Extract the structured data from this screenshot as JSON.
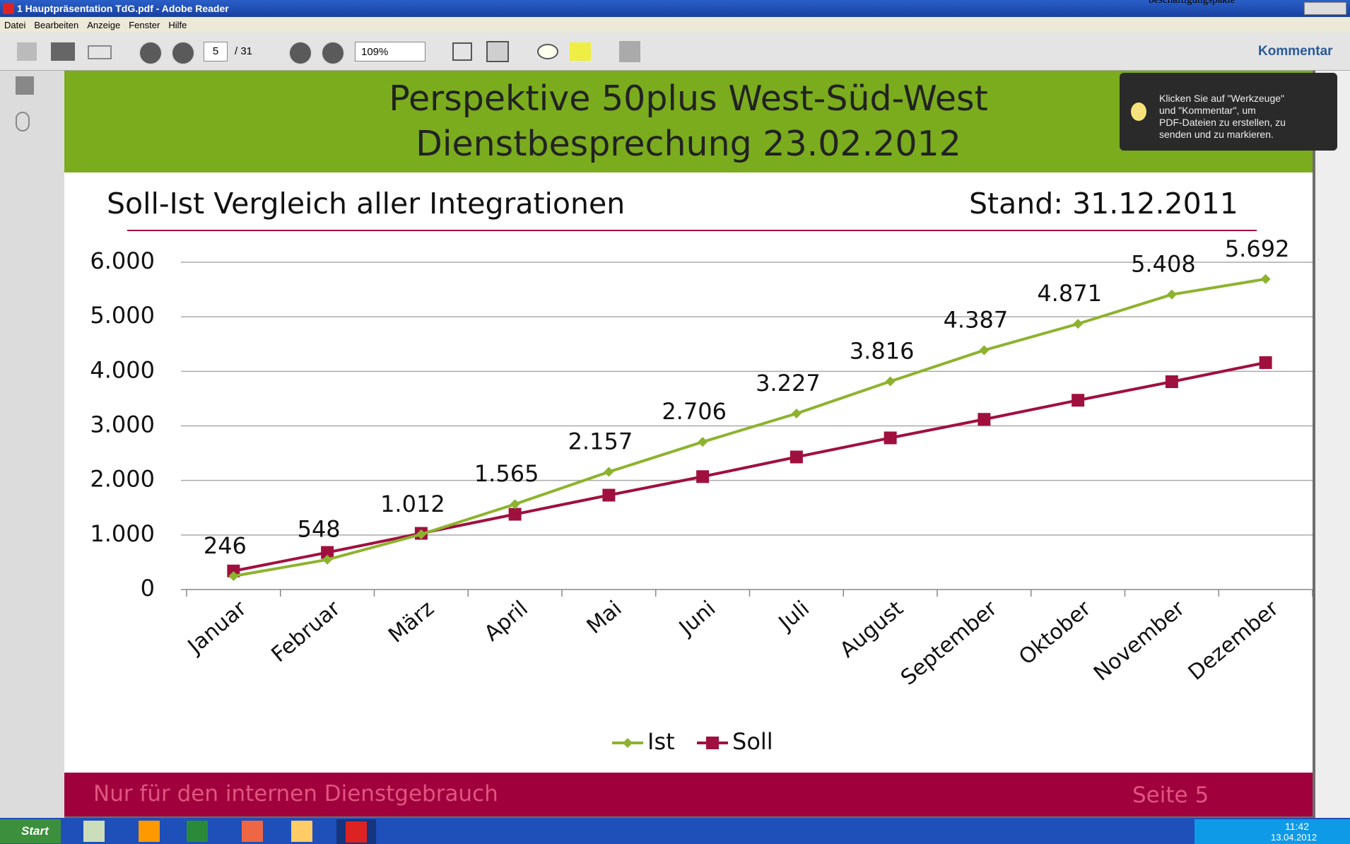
{
  "window": {
    "title": "1 Hauptpräsentation TdG.pdf - Adobe Reader",
    "clipped_text": "beschäftigungspakte"
  },
  "menu": [
    "Datei",
    "Bearbeiten",
    "Anzeige",
    "Fenster",
    "Hilfe"
  ],
  "toolbar": {
    "page": "5",
    "page_count": "/ 31",
    "zoom": "109%",
    "comment": "Kommentar"
  },
  "tooltip": {
    "lines": [
      "Klicken Sie auf \"Werkzeuge\"",
      "und \"Kommentar\", um",
      "PDF-Dateien zu erstellen, zu",
      "senden und zu markieren."
    ]
  },
  "slide": {
    "title_lines": [
      "Perspektive 50plus West-Süd-West",
      "Dienstbesprechung 23.02.2012"
    ],
    "subtitle": "Soll-Ist Vergleich aller Integrationen",
    "stand": "Stand: 31.12.2011",
    "footer": "Nur für den internen Dienstgebrauch",
    "page_label": "Seite 5"
  },
  "chart_data": {
    "type": "line",
    "categories": [
      "Januar",
      "Februar",
      "März",
      "April",
      "Mai",
      "Juni",
      "Juli",
      "August",
      "September",
      "Oktober",
      "November",
      "Dezember"
    ],
    "series": [
      {
        "name": "Ist",
        "color": "#8db32e",
        "values": [
          246,
          548,
          1012,
          1565,
          2157,
          2706,
          3227,
          3816,
          4387,
          4871,
          5408,
          5692
        ],
        "value_labels": [
          "246",
          "548",
          "1.012",
          "1.565",
          "2.157",
          "2.706",
          "3.227",
          "3.816",
          "4.387",
          "4.871",
          "5.408",
          "5.692"
        ]
      },
      {
        "name": "Soll",
        "color": "#a0103f",
        "values": [
          340,
          680,
          1030,
          1380,
          1730,
          2070,
          2430,
          2780,
          3120,
          3470,
          3810,
          4160
        ]
      }
    ],
    "ylim": [
      0,
      6000
    ],
    "yticks": [
      0,
      {
        "value": 1000,
        "label": "1.000"
      },
      {
        "value": 2000,
        "label": "2.000"
      },
      {
        "value": 3000,
        "label": "3.000"
      },
      {
        "value": 4000,
        "label": "4.000"
      },
      {
        "value": 5000,
        "label": "5.000"
      },
      {
        "value": 6000,
        "label": "6.000"
      }
    ],
    "grid": true,
    "legend": "bottom"
  },
  "taskbar": {
    "start": "Start",
    "time": "11:42",
    "date": "13.04.2012"
  }
}
